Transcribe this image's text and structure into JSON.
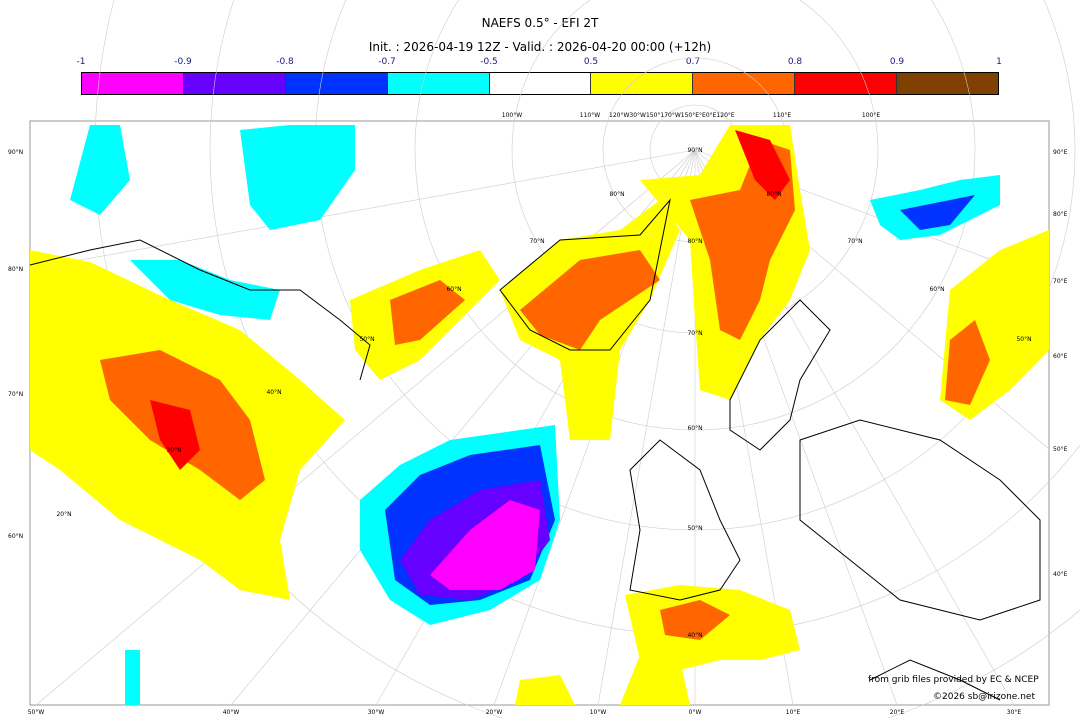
{
  "header": {
    "title": "NAEFS 0.5° - EFI 2T",
    "subtitle": "Init. : 2026-04-19 12Z - Valid. : 2026-04-20 00:00 (+12h)"
  },
  "colorbar": {
    "ticks": [
      "-1",
      "-0.9",
      "-0.8",
      "-0.7",
      "-0.5",
      "0.5",
      "0.7",
      "0.8",
      "0.9",
      "1"
    ],
    "colors": [
      "#ff00ff",
      "#6600ff",
      "#0033ff",
      "#00ffff",
      "#ffffff",
      "#ffff00",
      "#ff6600",
      "#ff0000",
      "#804000"
    ]
  },
  "axes": {
    "left": [
      "90°N",
      "80°N",
      "70°N",
      "60°N"
    ],
    "right": [
      "90°E",
      "80°E",
      "70°E",
      "60°E",
      "50°E",
      "40°E"
    ],
    "top": [
      "100°W",
      "110°W",
      "120°W30°W150°170°W150°E°E0°E120°E",
      "110°E",
      "100°E"
    ],
    "bottom": [
      "50°W",
      "40°W",
      "30°W",
      "20°W",
      "10°W",
      "0°W",
      "10°E",
      "20°E",
      "30°E"
    ],
    "grid_labels": [
      "90°N",
      "80°N",
      "80°N",
      "80°N",
      "70°N",
      "70°N",
      "70°N",
      "60°N",
      "60°N",
      "60°N",
      "50°N",
      "50°N",
      "50°N",
      "40°N",
      "40°N",
      "30°N",
      "20°N"
    ]
  },
  "credits": {
    "source": "from grib files provided by EC & NCEP",
    "copyright": "©2026 sb@irizone.net"
  }
}
